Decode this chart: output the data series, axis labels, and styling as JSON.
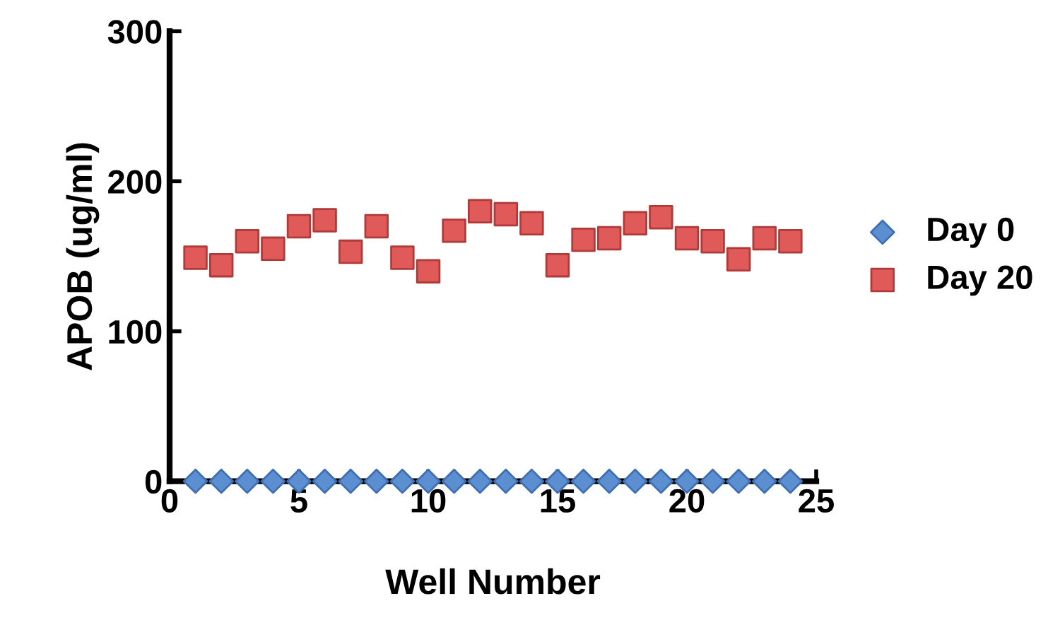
{
  "chart_data": {
    "type": "scatter",
    "xlabel": "Well Number",
    "ylabel": "APOB (ug/ml)",
    "x": [
      1,
      2,
      3,
      4,
      5,
      6,
      7,
      8,
      9,
      10,
      11,
      12,
      13,
      14,
      15,
      16,
      17,
      18,
      19,
      20,
      21,
      22,
      23,
      24
    ],
    "series": [
      {
        "name": "Day 0",
        "color": "#5b8fd1",
        "marker": "diamond",
        "values": [
          0,
          0,
          0,
          0,
          0,
          0,
          0,
          0,
          0,
          0,
          0,
          0,
          0,
          0,
          0,
          0,
          0,
          0,
          0,
          0,
          0,
          0,
          0,
          0
        ]
      },
      {
        "name": "Day 20",
        "color": "#e05a5a",
        "marker": "square",
        "values": [
          149,
          144,
          160,
          155,
          170,
          174,
          153,
          170,
          149,
          140,
          167,
          180,
          178,
          172,
          144,
          161,
          162,
          172,
          176,
          162,
          160,
          148,
          162,
          160
        ]
      }
    ],
    "xlim": [
      0,
      25
    ],
    "xticks": [
      0,
      5,
      10,
      15,
      20,
      25
    ],
    "ylim": [
      0,
      300
    ],
    "yticks": [
      0,
      100,
      200,
      300
    ],
    "grid": false,
    "legend": "right"
  }
}
